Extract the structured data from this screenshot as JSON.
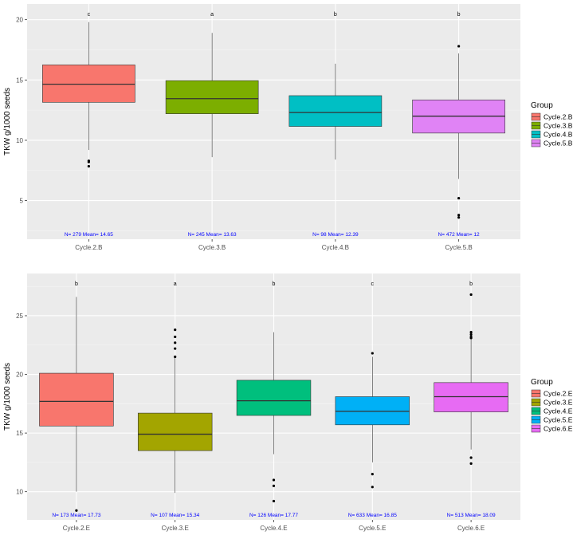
{
  "chart_data": [
    {
      "type": "boxplot",
      "ylabel": "TKW g/1000 seeds",
      "xlabel": "",
      "ylim": [
        1.8,
        21.3
      ],
      "yticks": [
        5,
        10,
        15,
        20
      ],
      "legend_title": "Group",
      "categories": [
        "Cycle.2.B",
        "Cycle.3.B",
        "Cycle.4.B",
        "Cycle.5.B"
      ],
      "series": [
        {
          "name": "Cycle.2.B",
          "color": "#F8766D",
          "q1": 13.15,
          "median": 14.65,
          "q3": 16.25,
          "lower": 9.2,
          "upper": 19.8,
          "outliers": [
            8.3,
            8.2,
            7.85
          ],
          "sig": "c",
          "annotation": "N= 279 Mean= 14.65"
        },
        {
          "name": "Cycle.3.B",
          "color": "#7CAE00",
          "q1": 12.2,
          "median": 13.45,
          "q3": 14.95,
          "lower": 8.6,
          "upper": 18.9,
          "outliers": [],
          "sig": "a",
          "annotation": "N= 245 Mean= 13.63"
        },
        {
          "name": "Cycle.4.B",
          "color": "#00BFC4",
          "q1": 11.15,
          "median": 12.3,
          "q3": 13.7,
          "lower": 8.4,
          "upper": 16.35,
          "outliers": [],
          "sig": "b",
          "annotation": "N= 98 Mean= 12.39"
        },
        {
          "name": "Cycle.5.B",
          "color": "#E083F5",
          "q1": 10.6,
          "median": 12.0,
          "q3": 13.35,
          "lower": 6.8,
          "upper": 17.2,
          "outliers": [
            17.8,
            5.2,
            3.8,
            3.6
          ],
          "sig": "b",
          "annotation": "N= 472 Mean= 12"
        }
      ]
    },
    {
      "type": "boxplot",
      "ylabel": "TKW g/1000 seeds",
      "xlabel": "",
      "ylim": [
        7.6,
        28.6
      ],
      "yticks": [
        10,
        15,
        20,
        25
      ],
      "legend_title": "Group",
      "categories": [
        "Cycle.2.E",
        "Cycle.3.E",
        "Cycle.4.E",
        "Cycle.5.E",
        "Cycle.6.E"
      ],
      "series": [
        {
          "name": "Cycle.2.E",
          "color": "#F8766D",
          "q1": 15.6,
          "median": 17.7,
          "q3": 20.1,
          "lower": 10.0,
          "upper": 26.6,
          "outliers": [
            8.4
          ],
          "sig": "b",
          "annotation": "N= 173 Mean= 17.73"
        },
        {
          "name": "Cycle.3.E",
          "color": "#A3A500",
          "q1": 13.5,
          "median": 14.9,
          "q3": 16.7,
          "lower": 9.9,
          "upper": 21.4,
          "outliers": [
            23.8,
            23.2,
            22.7,
            22.2,
            21.5
          ],
          "sig": "a",
          "annotation": "N= 107 Mean= 15.34"
        },
        {
          "name": "Cycle.4.E",
          "color": "#00BF7D",
          "q1": 16.5,
          "median": 17.75,
          "q3": 19.5,
          "lower": 13.2,
          "upper": 23.6,
          "outliers": [
            11.0,
            10.5,
            9.2
          ],
          "sig": "b",
          "annotation": "N= 126 Mean= 17.77"
        },
        {
          "name": "Cycle.5.E",
          "color": "#00B0F6",
          "q1": 15.7,
          "median": 16.85,
          "q3": 18.1,
          "lower": 12.5,
          "upper": 21.5,
          "outliers": [
            21.8,
            11.5,
            10.4
          ],
          "sig": "c",
          "annotation": "N= 633 Mean= 16.85"
        },
        {
          "name": "Cycle.6.E",
          "color": "#E76BF3",
          "q1": 16.8,
          "median": 18.1,
          "q3": 19.3,
          "lower": 13.6,
          "upper": 23.0,
          "outliers": [
            26.8,
            23.6,
            23.4,
            23.2,
            23.1,
            12.9,
            12.4
          ],
          "sig": "b",
          "annotation": "N= 513 Mean= 18.09"
        }
      ]
    }
  ]
}
